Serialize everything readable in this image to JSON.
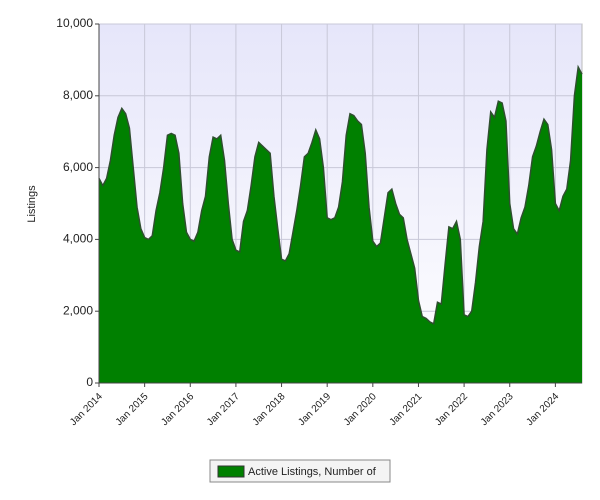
{
  "chart_data": {
    "type": "area",
    "y_label": "Listings",
    "categories": [
      "Jan 2014",
      null,
      null,
      null,
      null,
      null,
      null,
      null,
      null,
      null,
      null,
      null,
      "Jan 2015",
      null,
      null,
      null,
      null,
      null,
      null,
      null,
      null,
      null,
      null,
      null,
      "Jan 2016",
      null,
      null,
      null,
      null,
      null,
      null,
      null,
      null,
      null,
      null,
      null,
      "Jan 2017",
      null,
      null,
      null,
      null,
      null,
      null,
      null,
      null,
      null,
      null,
      null,
      "Jan 2018",
      null,
      null,
      null,
      null,
      null,
      null,
      null,
      null,
      null,
      null,
      null,
      "Jan 2019",
      null,
      null,
      null,
      null,
      null,
      null,
      null,
      null,
      null,
      null,
      null,
      "Jan 2020",
      null,
      null,
      null,
      null,
      null,
      null,
      null,
      null,
      null,
      null,
      null,
      "Jan 2021",
      null,
      null,
      null,
      null,
      null,
      null,
      null,
      null,
      null,
      null,
      null,
      "Jan 2022",
      null,
      null,
      null,
      null,
      null,
      null,
      null,
      null,
      null,
      null,
      null,
      "Jan 2023",
      null,
      null,
      null,
      null,
      null,
      null,
      null,
      null,
      null,
      null,
      null,
      "Jan 2024",
      null,
      null,
      null,
      null,
      null,
      null,
      null
    ],
    "series": [
      {
        "name": "Active Listings, Number of",
        "color": "#008000",
        "values": [
          5700,
          5500,
          5700,
          6200,
          6900,
          7400,
          7650,
          7500,
          7100,
          6000,
          4900,
          4300,
          4050,
          4000,
          4100,
          4800,
          5300,
          6000,
          6900,
          6950,
          6900,
          6400,
          5000,
          4200,
          4000,
          3950,
          4200,
          4800,
          5200,
          6300,
          6850,
          6800,
          6900,
          6200,
          5000,
          4000,
          3700,
          3650,
          4500,
          4800,
          5500,
          6300,
          6700,
          6600,
          6500,
          6400,
          5200,
          4300,
          3450,
          3400,
          3600,
          4200,
          4800,
          5500,
          6300,
          6400,
          6700,
          7050,
          6800,
          6000,
          4600,
          4550,
          4600,
          4900,
          5600,
          6900,
          7500,
          7450,
          7300,
          7200,
          6400,
          4900,
          3950,
          3800,
          3900,
          4600,
          5300,
          5400,
          5000,
          4700,
          4600,
          4000,
          3600,
          3200,
          2300,
          1850,
          1800,
          1700,
          1650,
          2250,
          2200,
          3300,
          4350,
          4300,
          4500,
          4000,
          1900,
          1850,
          2000,
          2800,
          3800,
          4500,
          6500,
          7550,
          7400,
          7850,
          7800,
          7300,
          5000,
          4300,
          4150,
          4600,
          4900,
          5500,
          6300,
          6600,
          7000,
          7350,
          7200,
          6500,
          5000,
          4800,
          5200,
          5400,
          6200,
          8000,
          8800,
          8600
        ]
      }
    ],
    "ylim": [
      0,
      10000
    ],
    "yticks": [
      0,
      {
        "value": 2000,
        "label": "2,000"
      },
      {
        "value": 4000,
        "label": "4,000"
      },
      {
        "value": 6000,
        "label": "6,000"
      },
      {
        "value": 8000,
        "label": "8,000"
      },
      {
        "value": 10000,
        "label": "10,000"
      }
    ],
    "grid": true,
    "legend": "bottom"
  }
}
